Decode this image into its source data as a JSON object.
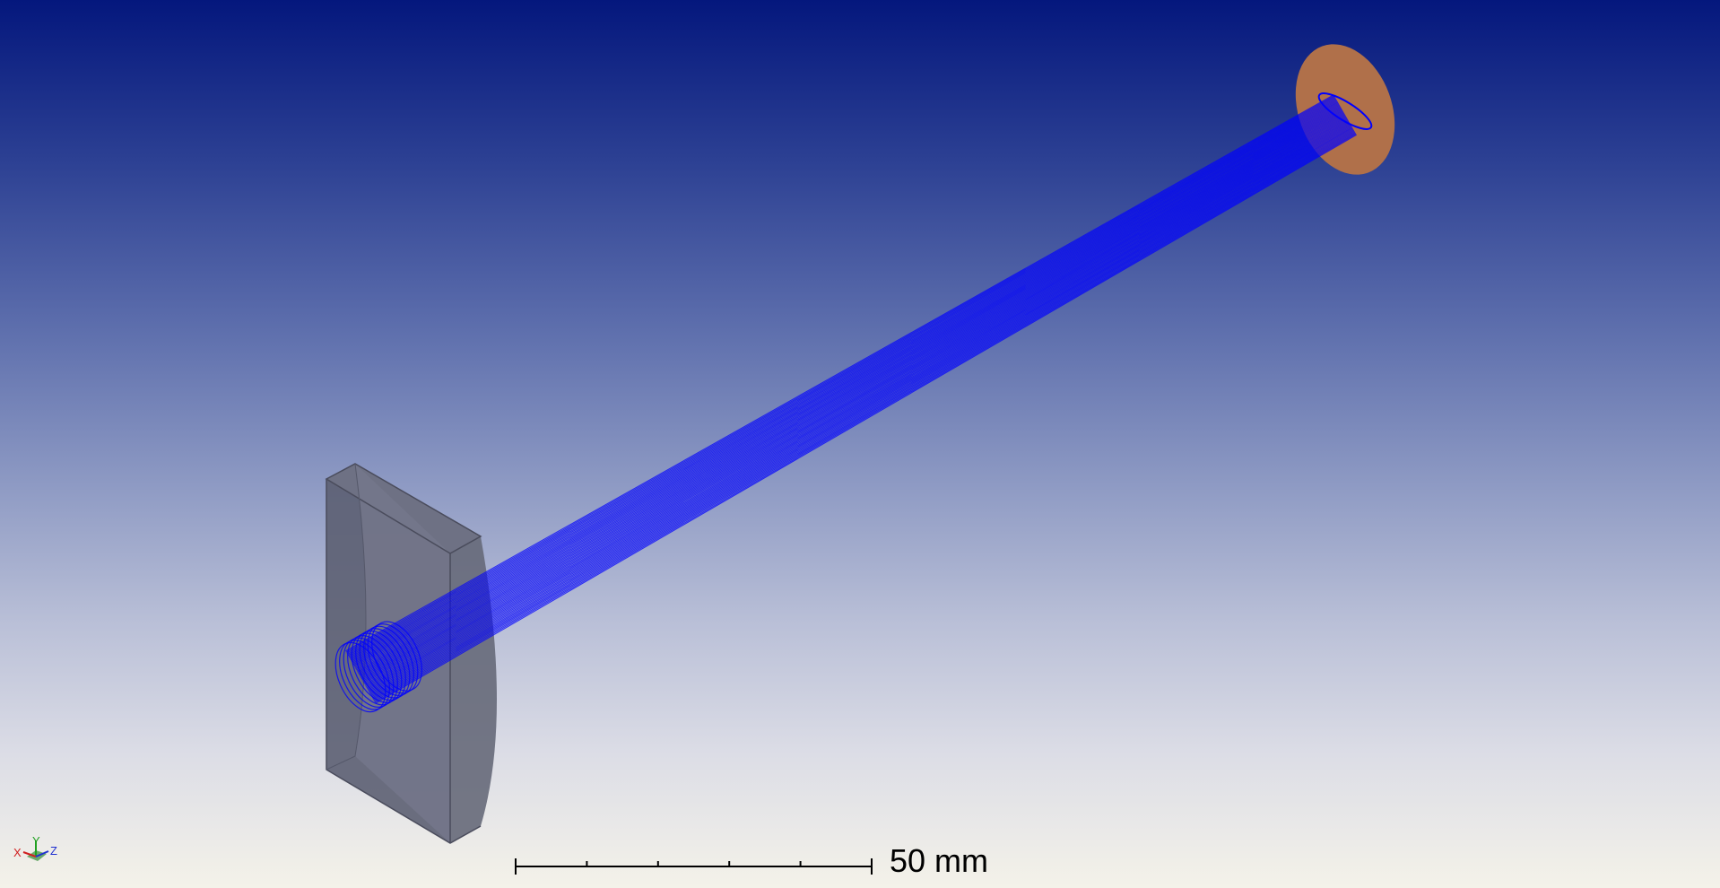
{
  "viewport": {
    "scale_bar": {
      "label": "50 mm",
      "ticks": 5
    },
    "axis_triad": {
      "x_label": "X",
      "y_label": "Y",
      "z_label": "Z"
    },
    "colors": {
      "background_top": "#04177d",
      "background_bottom": "#f4f2e9",
      "beam": "#0000ff",
      "lens": "#5c6075",
      "detector": "#b0704a"
    },
    "scene_objects": [
      {
        "name": "lens",
        "icon": "lens-element"
      },
      {
        "name": "ray-bundle",
        "icon": "ray-bundle"
      },
      {
        "name": "detector-disc",
        "icon": "detector-surface"
      }
    ]
  }
}
